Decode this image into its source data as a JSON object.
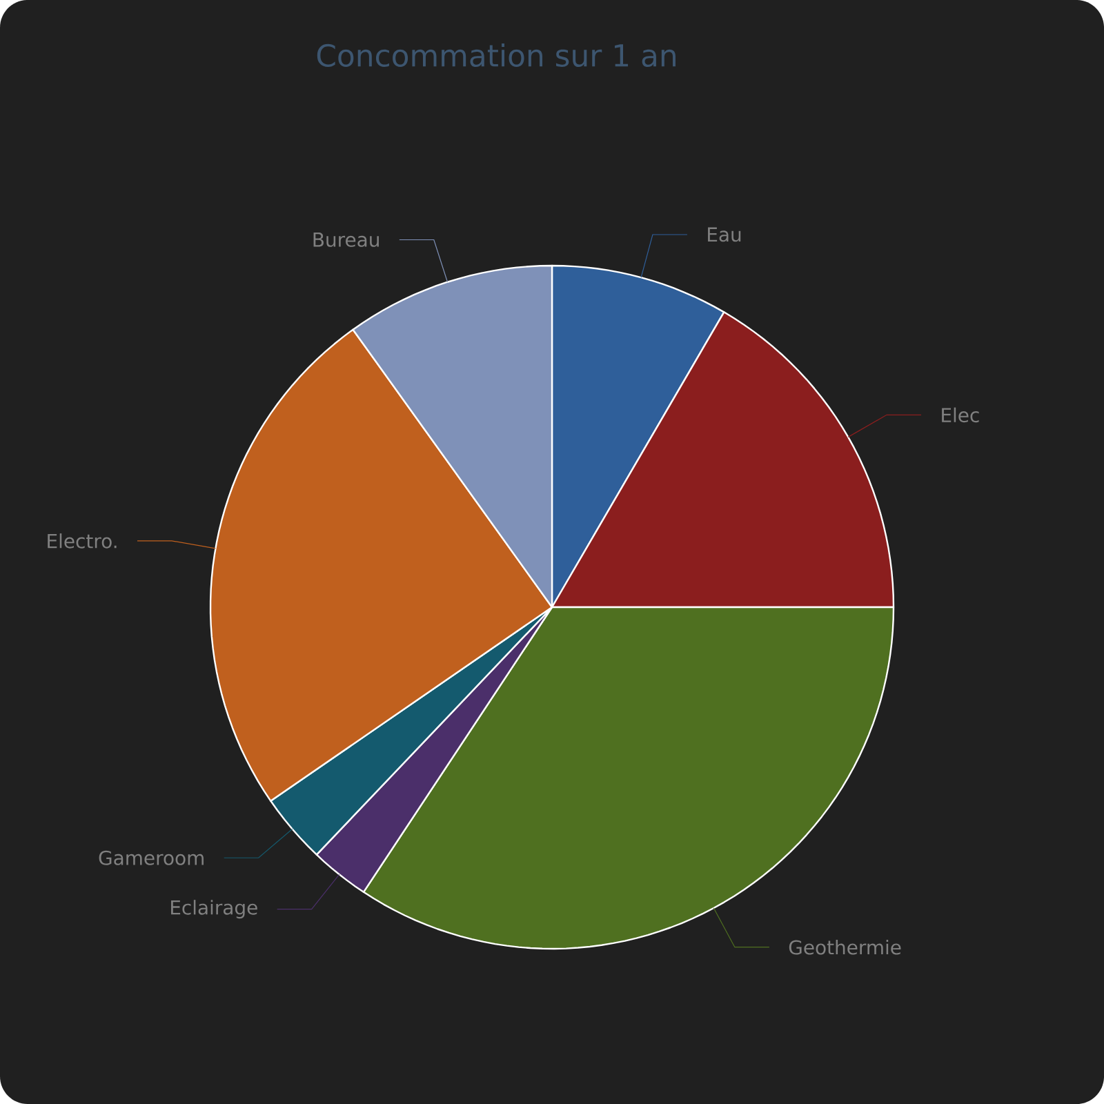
{
  "chart_data": {
    "type": "pie",
    "title": "Concommation sur 1 an",
    "categories": [
      "Eau",
      "Elec",
      "Geothermie",
      "Eclairage",
      "Gameroom",
      "Electro.",
      "Bureau"
    ],
    "values": [
      8.4,
      16.6,
      34.3,
      2.8,
      3.3,
      24.7,
      9.9
    ],
    "colors": [
      "#2f5f9a",
      "#8b1e1e",
      "#4f7020",
      "#4b2f6a",
      "#145a6e",
      "#c0601e",
      "#7f91b8"
    ]
  }
}
